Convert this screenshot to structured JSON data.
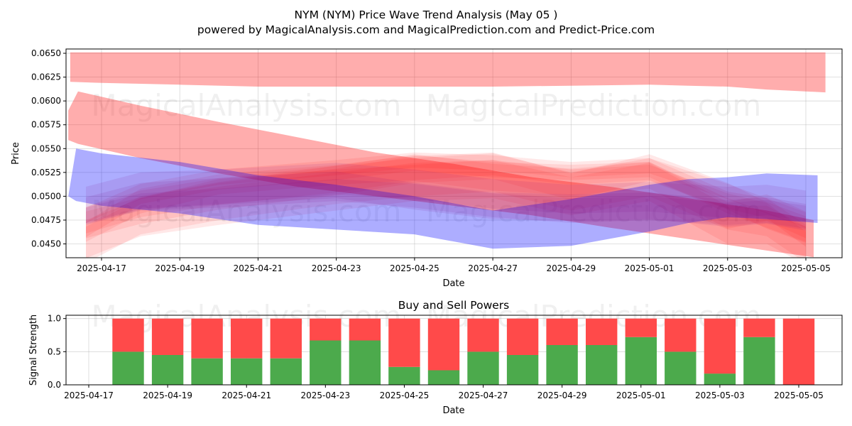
{
  "watermarks": [
    "MagicalAnalysis.com",
    "MagicalPrediction.com"
  ],
  "chart_data": [
    {
      "type": "area",
      "title": "NYM (NYM) Price Wave Trend Analysis (May 05 )",
      "subtitle": "powered by MagicalAnalysis.com and MagicalPrediction.com and Predict-Price.com",
      "xlabel": "Date",
      "ylabel": "Price",
      "ylim": [
        0.04355,
        0.06545
      ],
      "y_ticks": [
        "0.0450",
        "0.0475",
        "0.0500",
        "0.0525",
        "0.0550",
        "0.0575",
        "0.0600",
        "0.0625",
        "0.0650"
      ],
      "x_ticks": [
        "2025-04-17",
        "2025-04-19",
        "2025-04-21",
        "2025-04-23",
        "2025-04-25",
        "2025-04-27",
        "2025-04-29",
        "2025-05-01",
        "2025-05-03",
        "2025-05-05"
      ],
      "x_start": "2025-04-16",
      "grid": true,
      "bands": [
        {
          "name": "upper red band",
          "color": "#ff0000",
          "opacity": 0.32,
          "days": [
            0.2,
            1,
            3,
            5,
            7,
            9,
            11,
            13,
            15,
            16,
            17,
            18,
            19.5
          ],
          "lower": [
            0.062,
            0.0619,
            0.0617,
            0.0615,
            0.0615,
            0.0615,
            0.0615,
            0.0616,
            0.0617,
            0.0616,
            0.0615,
            0.0612,
            0.0609
          ],
          "upper": [
            0.0651,
            0.0651,
            0.0651,
            0.0651,
            0.0651,
            0.0651,
            0.0651,
            0.0651,
            0.0651,
            0.0651,
            0.0651,
            0.0651,
            0.0651
          ]
        },
        {
          "name": "falling red band",
          "color": "#ff0000",
          "opacity": 0.32,
          "days": [
            0.15,
            0.4,
            2,
            4,
            6,
            8,
            10,
            12,
            14,
            16,
            18,
            19.2
          ],
          "lower": [
            0.0559,
            0.0555,
            0.054,
            0.0524,
            0.051,
            0.05,
            0.049,
            0.048,
            0.0467,
            0.0455,
            0.0443,
            0.0436
          ],
          "upper": [
            0.059,
            0.061,
            0.0595,
            0.0578,
            0.0562,
            0.0546,
            0.0534,
            0.052,
            0.051,
            0.0498,
            0.0485,
            0.0475
          ]
        },
        {
          "name": "blue band",
          "color": "#0000ff",
          "opacity": 0.32,
          "days": [
            0.15,
            0.35,
            1,
            3,
            5,
            7,
            9,
            11,
            13,
            15,
            16,
            17,
            18,
            19.3
          ],
          "lower": [
            0.05,
            0.0495,
            0.049,
            0.0482,
            0.047,
            0.0465,
            0.046,
            0.0445,
            0.0448,
            0.0463,
            0.0472,
            0.0478,
            0.0476,
            0.0472
          ],
          "upper": [
            0.05,
            0.055,
            0.0545,
            0.0536,
            0.0522,
            0.0512,
            0.05,
            0.0485,
            0.0497,
            0.0512,
            0.0518,
            0.052,
            0.0524,
            0.0522
          ]
        }
      ],
      "waves": {
        "color": "#ff0000",
        "opacity": 0.09,
        "days": [
          0.6,
          2,
          4,
          7,
          9,
          11,
          13,
          15,
          17,
          18,
          19
        ],
        "series": [
          [
            0.046,
            0.049,
            0.051,
            0.052,
            0.0525,
            0.053,
            0.052,
            0.0525,
            0.0495,
            0.0485,
            0.0455
          ],
          [
            0.047,
            0.0485,
            0.05,
            0.0515,
            0.0528,
            0.0532,
            0.051,
            0.053,
            0.05,
            0.048,
            0.0465
          ],
          [
            0.045,
            0.048,
            0.0495,
            0.0512,
            0.052,
            0.0525,
            0.0505,
            0.052,
            0.0485,
            0.0478,
            0.045
          ],
          [
            0.0465,
            0.05,
            0.0515,
            0.0525,
            0.0535,
            0.0528,
            0.0525,
            0.0528,
            0.049,
            0.0475,
            0.046
          ],
          [
            0.0475,
            0.0492,
            0.0505,
            0.0518,
            0.053,
            0.052,
            0.0515,
            0.0522,
            0.048,
            0.0488,
            0.047
          ],
          [
            0.0455,
            0.0478,
            0.049,
            0.0505,
            0.0515,
            0.0518,
            0.05,
            0.0515,
            0.047,
            0.047,
            0.0448
          ],
          [
            0.048,
            0.0505,
            0.052,
            0.053,
            0.0538,
            0.0535,
            0.0528,
            0.0532,
            0.0505,
            0.049,
            0.0475
          ]
        ]
      },
      "purple_waves": {
        "color": "#800080",
        "opacity": 0.1,
        "days": [
          0.6,
          2,
          4,
          7,
          9,
          11,
          13,
          15,
          17,
          18,
          19
        ],
        "series": [
          [
            0.048,
            0.0495,
            0.05,
            0.051,
            0.0505,
            0.0495,
            0.049,
            0.0492,
            0.0485,
            0.0488,
            0.0482
          ],
          [
            0.0485,
            0.05,
            0.0505,
            0.0512,
            0.05,
            0.049,
            0.0488,
            0.049,
            0.0482,
            0.0485,
            0.0478
          ],
          [
            0.049,
            0.0505,
            0.0508,
            0.0515,
            0.0508,
            0.0498,
            0.0492,
            0.0495,
            0.049,
            0.0492,
            0.0486
          ]
        ]
      }
    },
    {
      "type": "bar",
      "title": "Buy and Sell Powers",
      "xlabel": "Date",
      "ylabel": "Signal Strength",
      "ylim": [
        0,
        1.05
      ],
      "y_ticks": [
        "0.0",
        "0.5",
        "1.0"
      ],
      "x_ticks": [
        "2025-04-17",
        "2025-04-19",
        "2025-04-21",
        "2025-04-23",
        "2025-04-25",
        "2025-04-27",
        "2025-04-29",
        "2025-05-01",
        "2025-05-03",
        "2025-05-05"
      ],
      "categories": [
        "2025-04-18",
        "2025-04-19",
        "2025-04-20",
        "2025-04-21",
        "2025-04-22",
        "2025-04-23",
        "2025-04-24",
        "2025-04-25",
        "2025-04-26",
        "2025-04-27",
        "2025-04-28",
        "2025-04-29",
        "2025-04-30",
        "2025-05-01",
        "2025-05-02",
        "2025-05-03",
        "2025-05-04",
        "2025-05-05"
      ],
      "series": [
        {
          "name": "Buy",
          "color": "#4caa4c",
          "values": [
            0.5,
            0.45,
            0.4,
            0.4,
            0.4,
            0.67,
            0.67,
            0.27,
            0.22,
            0.5,
            0.45,
            0.6,
            0.6,
            0.72,
            0.5,
            0.17,
            0.72,
            0.0
          ]
        },
        {
          "name": "Sell",
          "color": "#ff4a4a",
          "values": [
            0.5,
            0.55,
            0.6,
            0.6,
            0.6,
            0.33,
            0.33,
            0.73,
            0.78,
            0.5,
            0.55,
            0.4,
            0.4,
            0.28,
            0.5,
            0.83,
            0.28,
            1.0
          ]
        }
      ],
      "grid": true
    }
  ]
}
